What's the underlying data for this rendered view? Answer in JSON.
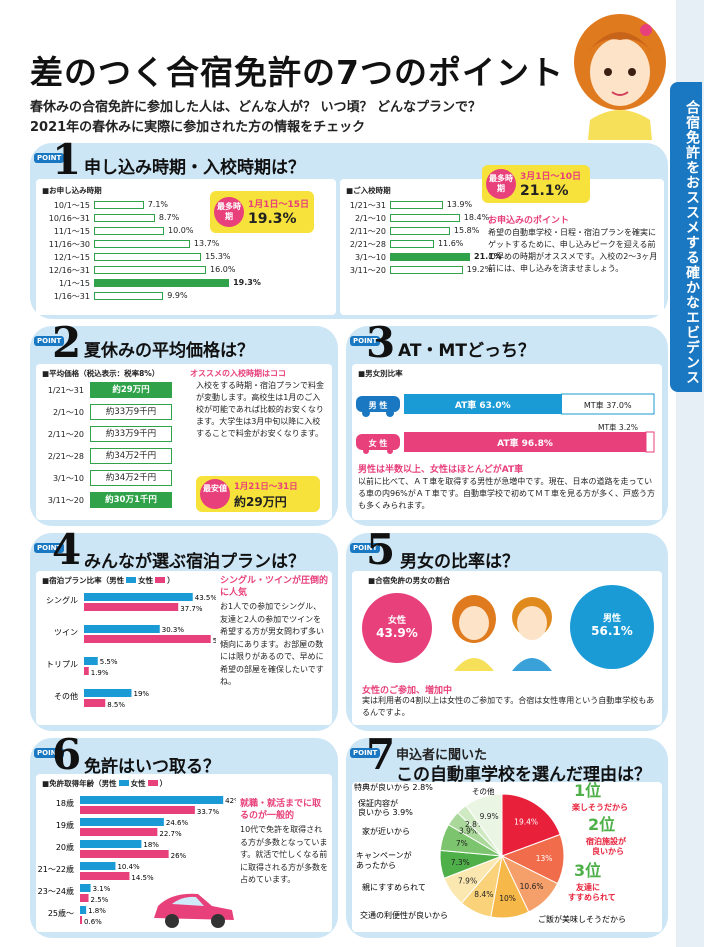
{
  "header": {
    "title": "差のつく合宿免許の7つのポイント",
    "subtitle1": "春休みの合宿免許に参加した人は、どんな人が？ いつ頃？ どんなプランで？",
    "subtitle2": "2021年の春休みに実際に参加された方の情報をチェック"
  },
  "sidebar": {
    "tab": "合宿免許をおススメする確かなエビデンス"
  },
  "point_tag": "POINT",
  "s1": {
    "num": "1",
    "title": "申し込み時期・入校時期は？",
    "apply": {
      "title": "■お申し込み時期",
      "rows": [
        {
          "l": "10/1～15",
          "v": "7.1%",
          "n": 7.1
        },
        {
          "l": "10/16～31",
          "v": "8.7%",
          "n": 8.7
        },
        {
          "l": "11/1～15",
          "v": "10.0%",
          "n": 10.0
        },
        {
          "l": "11/16～30",
          "v": "13.7%",
          "n": 13.7
        },
        {
          "l": "12/1～15",
          "v": "15.3%",
          "n": 15.3
        },
        {
          "l": "12/16～31",
          "v": "16.0%",
          "n": 16.0
        },
        {
          "l": "1/1～15",
          "v": "19.3%",
          "n": 19.3,
          "hl": true
        },
        {
          "l": "1/16～31",
          "v": "9.9%",
          "n": 9.9
        }
      ]
    },
    "apply_peak": {
      "badge": "最多時期",
      "range": "1月1日～15日",
      "pct": "19.3%"
    },
    "entry": {
      "title": "■ご入校時期",
      "rows": [
        {
          "l": "1/21～31",
          "v": "13.9%",
          "n": 13.9
        },
        {
          "l": "2/1～10",
          "v": "18.4%",
          "n": 18.4
        },
        {
          "l": "2/11～20",
          "v": "15.8%",
          "n": 15.8
        },
        {
          "l": "2/21～28",
          "v": "11.6%",
          "n": 11.6
        },
        {
          "l": "3/1～10",
          "v": "21.1%",
          "n": 21.1,
          "hl": true
        },
        {
          "l": "3/11～20",
          "v": "19.2%",
          "n": 19.2
        }
      ]
    },
    "entry_peak": {
      "badge": "最多時期",
      "range": "3月1日～10日",
      "pct": "21.1%"
    },
    "note_title": "お申込みのポイント",
    "note": "希望の自動車学校・日程・宿泊プランを確実にゲットするために、申し込みピークを迎える前の早めの時期がオススメです。入校の2～3ヶ月前には、申し込みを済ませましょう。"
  },
  "s2": {
    "num": "2",
    "title": "夏休みの平均価格は？",
    "table_title": "■平均価格（税込表示：税率8%）",
    "rows": [
      {
        "l": "1/21～31",
        "v": "約29万円",
        "hl": true
      },
      {
        "l": "2/1～10",
        "v": "約33万9千円"
      },
      {
        "l": "2/11～20",
        "v": "約33万9千円"
      },
      {
        "l": "2/21～28",
        "v": "約34万2千円"
      },
      {
        "l": "3/1～10",
        "v": "約34万2千円"
      },
      {
        "l": "3/11～20",
        "v": "約30万1千円",
        "hl": true
      }
    ],
    "hint": "オススメの入校時期はココ",
    "note": "入校をする時期・宿泊プランで料金が変動します。高校生は1月のご入校が可能であれば比較的お安くなります。大学生は3月中旬以降に入校することで料金がお安くなります。",
    "cheap_badge": "最安値",
    "cheap_range": "1月21日～31日",
    "cheap_price": "約29万円"
  },
  "s3": {
    "num": "3",
    "title": "AT・MTどっち？",
    "chart_title": "■男女別比率",
    "male": "男 性",
    "female": "女 性",
    "male_at": "AT車 63.0%",
    "male_mt": "MT車 37.0%",
    "female_at": "AT車 96.8%",
    "female_mt": "MT車 3.2%",
    "male_at_n": 63.0,
    "female_at_n": 96.8,
    "note_title": "男性は半数以上、女性はほとんどがAT車",
    "note": "以前に比べて、ＡＴ車を取得する男性が急増中です。現在、日本の道路を走っている車の内96%がＡＴ車です。自動車学校で初めてＭＴ車を見る方が多く、戸惑う方も多くみられます。"
  },
  "s4": {
    "num": "4",
    "title": "みんなが選ぶ宿泊プランは？",
    "chart_title": "■宿泊プラン比率（男性",
    "legend_m": "女性",
    "rows": [
      {
        "l": "シングル",
        "m": 43.5,
        "f": 37.7,
        "mv": "43.5%",
        "fv": "37.7%"
      },
      {
        "l": "ツイン",
        "m": 30.3,
        "f": 50.7,
        "mv": "30.3%",
        "fv": "50.7%"
      },
      {
        "l": "トリプル",
        "m": 5.5,
        "f": 1.9,
        "mv": "5.5%",
        "fv": "1.9%"
      },
      {
        "l": "その他",
        "m": 19,
        "f": 8.5,
        "mv": "19%",
        "fv": "8.5%"
      }
    ],
    "note_title": "シングル・ツインが圧倒的に人気",
    "note": "お1人での参加でシングル、友達と2人の参加でツインを希望する方が男女問わず多い傾向にあります。お部屋の数には限りがあるので、早めに希望の部屋を確保したいですね。"
  },
  "s5": {
    "num": "5",
    "title": "男女の比率は？",
    "chart_title": "■合宿免許の男女の割合",
    "female": "女性",
    "female_pct": "43.9%",
    "male": "男性",
    "male_pct": "56.1%",
    "note_title": "女性のご参加、増加中",
    "note": "実は利用者の4割以上は女性のご参加です。合宿は女性専用という自動車学校もあるんですよ。"
  },
  "s6": {
    "num": "6",
    "title": "免許はいつ取る？",
    "chart_title": "■免許取得年齢（男性",
    "rows": [
      {
        "l": "18歳",
        "m": 42,
        "f": 33.7,
        "mv": "42%",
        "fv": "33.7%"
      },
      {
        "l": "19歳",
        "m": 24.6,
        "f": 22.7,
        "mv": "24.6%",
        "fv": "22.7%"
      },
      {
        "l": "20歳",
        "m": 18,
        "f": 26,
        "mv": "18%",
        "fv": "26%"
      },
      {
        "l": "21～22歳",
        "m": 10.4,
        "f": 14.5,
        "mv": "10.4%",
        "fv": "14.5%"
      },
      {
        "l": "23～24歳",
        "m": 3.1,
        "f": 2.5,
        "mv": "3.1%",
        "fv": "2.5%"
      },
      {
        "l": "25歳～",
        "m": 1.8,
        "f": 0.6,
        "mv": "1.8%",
        "fv": "0.6%"
      }
    ],
    "note_title": "就職・就活までに取るのが一般的",
    "note": "10代で免許を取得される方が多数となっています。就活で忙しくなる前に取得される方が多数を占めています。"
  },
  "s7": {
    "num": "7",
    "title1": "申込者に聞いた",
    "title2": "この自動車学校を選んだ理由は？",
    "slices": [
      {
        "l": "楽しそうだから",
        "v": 19.4,
        "t": "19.4%",
        "c": "#e8203a"
      },
      {
        "l": "宿泊施設が良いから",
        "v": 13,
        "t": "13%",
        "c": "#f06c4a"
      },
      {
        "l": "友達にすすめられて",
        "v": 10.6,
        "t": "10.6%",
        "c": "#f5a06a"
      },
      {
        "l": "ご飯が美味しそうだから",
        "v": 10,
        "t": "10%",
        "c": "#f7b84a"
      },
      {
        "l": "交通の利便性が良いから",
        "v": 8.4,
        "t": "8.4%",
        "c": "#f9d27a"
      },
      {
        "l": "親にすすめられて",
        "v": 7.9,
        "t": "7.9%",
        "c": "#fbe7b0"
      },
      {
        "l": "キャンペーンがあったから",
        "v": 7.3,
        "t": "7.3%",
        "c": "#4fb04a"
      },
      {
        "l": "家が近いから",
        "v": 7,
        "t": "7%",
        "c": "#7cc46e"
      },
      {
        "l": "保証内容が良いから",
        "v": 3.9,
        "t": "3.9%",
        "c": "#a9d89a"
      },
      {
        "l": "特典が良いから",
        "v": 2.8,
        "t": "2.8%",
        "c": "#cfe9c2"
      },
      {
        "l": "その他",
        "v": 9.9,
        "t": "9.9%",
        "c": "#eaf5e4"
      }
    ],
    "rank1": "1位",
    "rank2": "2位",
    "rank3": "3位",
    "lab_tokuten": "特典が良いから 2.8%",
    "lab_hosho1": "保証内容が",
    "lab_hosho2": "良いから 3.9%",
    "lab_ie": "家が近いから",
    "lab_camp1": "キャンペーンが",
    "lab_camp2": "あったから",
    "lab_oya": "親にすすめられて",
    "lab_kotsu": "交通の利便性が良いから",
    "lab_gohan": "ご飯が美味しそうだから",
    "lab_sonota": "その他",
    "lab_r1": "楽しそうだから",
    "lab_r2a": "宿泊施設が",
    "lab_r2b": "良いから",
    "lab_r3a": "友達に",
    "lab_r3b": "すすめられて"
  },
  "chart_data": [
    {
      "type": "bar",
      "title": "■お申し込み時期",
      "categories": [
        "10/1～15",
        "10/16～31",
        "11/1～15",
        "11/16～30",
        "12/1～15",
        "12/16～31",
        "1/1～15",
        "1/16～31"
      ],
      "values": [
        7.1,
        8.7,
        10.0,
        13.7,
        15.3,
        16.0,
        19.3,
        9.9
      ]
    },
    {
      "type": "bar",
      "title": "■ご入校時期",
      "categories": [
        "1/21～31",
        "2/1～10",
        "2/11～20",
        "2/21～28",
        "3/1～10",
        "3/11～20"
      ],
      "values": [
        13.9,
        18.4,
        15.8,
        11.6,
        21.1,
        19.2
      ]
    },
    {
      "type": "bar",
      "title": "■宿泊プラン比率",
      "categories": [
        "シングル",
        "ツイン",
        "トリプル",
        "その他"
      ],
      "series": [
        {
          "name": "男性",
          "values": [
            43.5,
            30.3,
            5.5,
            19
          ]
        },
        {
          "name": "女性",
          "values": [
            37.7,
            50.7,
            1.9,
            8.5
          ]
        }
      ]
    },
    {
      "type": "pie",
      "title": "■合宿免許の男女の割合",
      "categories": [
        "女性",
        "男性"
      ],
      "values": [
        43.9,
        56.1
      ]
    },
    {
      "type": "bar",
      "title": "■免許取得年齢",
      "categories": [
        "18歳",
        "19歳",
        "20歳",
        "21～22歳",
        "23～24歳",
        "25歳～"
      ],
      "series": [
        {
          "name": "男性",
          "values": [
            42,
            24.6,
            18,
            10.4,
            3.1,
            1.8
          ]
        },
        {
          "name": "女性",
          "values": [
            33.7,
            22.7,
            26,
            14.5,
            2.5,
            0.6
          ]
        }
      ]
    },
    {
      "type": "pie",
      "categories": [
        "楽しそうだから",
        "宿泊施設が良いから",
        "友達にすすめられて",
        "ご飯が美味しそうだから",
        "交通の利便性が良いから",
        "親にすすめられて",
        "キャンペーンがあったから",
        "家が近いから",
        "保証内容が良いから",
        "特典が良いから",
        "その他"
      ],
      "values": [
        19.4,
        13,
        10.6,
        10,
        8.4,
        7.9,
        7.3,
        7,
        3.9,
        2.8,
        9.9
      ]
    }
  ]
}
